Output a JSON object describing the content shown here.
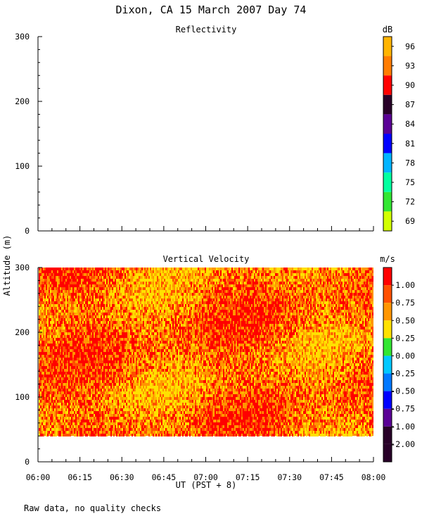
{
  "figure": {
    "title": "Dixon, CA 15 March 2007  Day  74",
    "footnote": "Raw data, no quality checks",
    "shared_ylabel": "Altitude (m)",
    "shared_xlabel": "UT  (PST + 8)"
  },
  "chart_data": [
    {
      "type": "heatmap",
      "title": "Reflectivity",
      "ylabel": "Altitude (m)",
      "xlabel": "UT  (PST + 8)",
      "x_ticks": [
        "06:00",
        "06:15",
        "06:30",
        "06:45",
        "07:00",
        "07:15",
        "07:30",
        "07:45",
        "08:00"
      ],
      "y_ticks": [
        0,
        100,
        200,
        300
      ],
      "ylim": [
        0,
        300
      ],
      "xlim": [
        "06:00",
        "08:00"
      ],
      "data": "none",
      "colorbar": {
        "unit": "dB",
        "labels": [
          "96",
          "93",
          "90",
          "87",
          "84",
          "81",
          "78",
          "75",
          "72",
          "69"
        ],
        "colors": [
          "#ffb400",
          "#ff7c00",
          "#ff0000",
          "#280028",
          "#5a0096",
          "#0000ff",
          "#00b4ff",
          "#00ffa0",
          "#32e632",
          "#d2ff00"
        ]
      }
    },
    {
      "type": "heatmap",
      "title": "Vertical Velocity",
      "ylabel": "Altitude (m)",
      "xlabel": "UT  (PST + 8)",
      "x_ticks": [
        "06:00",
        "06:15",
        "06:30",
        "06:45",
        "07:00",
        "07:15",
        "07:30",
        "07:45",
        "08:00"
      ],
      "y_ticks": [
        0,
        100,
        200,
        300
      ],
      "ylim": [
        0,
        300
      ],
      "xlim": [
        "06:00",
        "08:00"
      ],
      "data_range_altitude": [
        40,
        300
      ],
      "dominant_values": [
        1.0,
        0.75,
        0.5
      ],
      "colorbar": {
        "unit": "m/s",
        "labels": [
          "1.00",
          "0.75",
          "0.50",
          "0.25",
          "0.00",
          "-0.25",
          "-0.50",
          "-0.75",
          "-1.00",
          "-2.00"
        ],
        "colors": [
          "#ff0000",
          "#ff5000",
          "#ff9600",
          "#ffe100",
          "#32e632",
          "#00c8ff",
          "#0078ff",
          "#0000ff",
          "#5a0096",
          "#280028",
          "#280028"
        ]
      }
    }
  ]
}
